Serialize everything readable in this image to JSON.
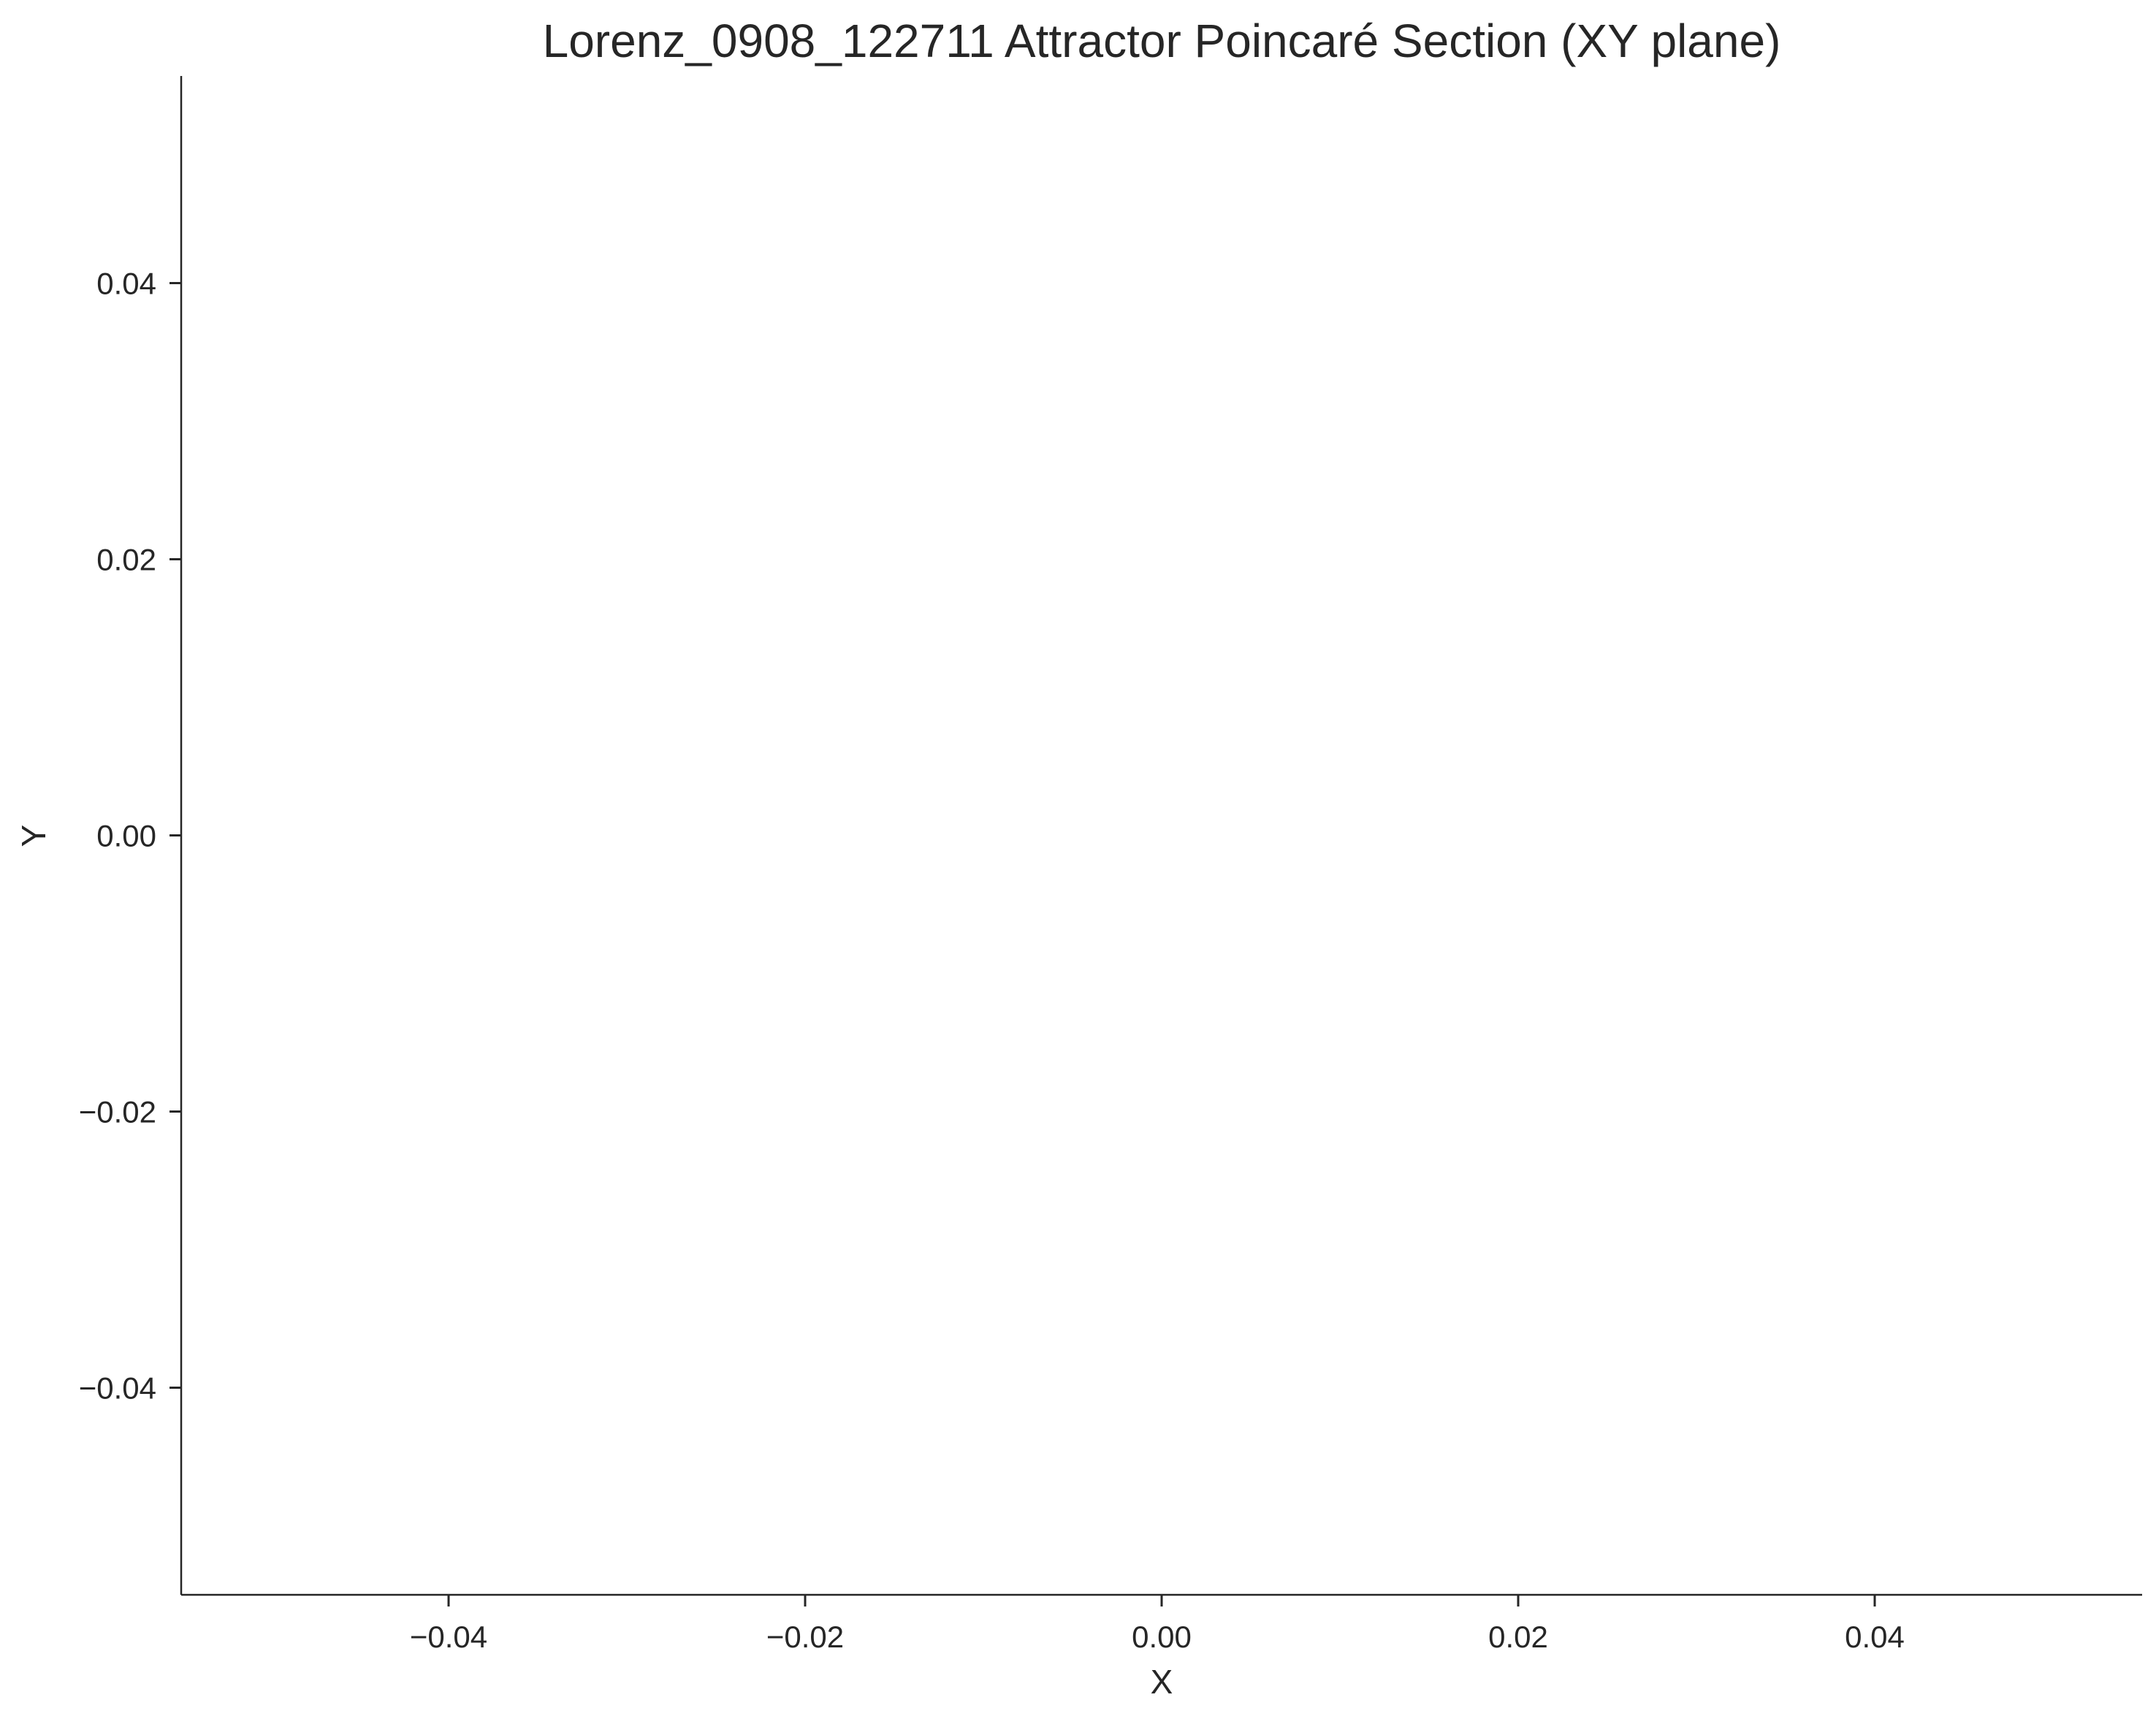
{
  "chart_data": {
    "type": "scatter",
    "title": "Lorenz_0908_122711 Attractor Poincaré Section (XY plane)",
    "xlabel": "X",
    "ylabel": "Y",
    "xlim": [
      -0.055,
      0.055
    ],
    "ylim": [
      -0.055,
      0.055
    ],
    "x_ticks": [
      -0.04,
      -0.02,
      0.0,
      0.02,
      0.04
    ],
    "x_tick_labels": [
      "−0.04",
      "−0.02",
      "0.00",
      "0.02",
      "0.04"
    ],
    "y_ticks": [
      0.04,
      0.02,
      0.0,
      -0.02,
      -0.04
    ],
    "y_tick_labels": [
      "0.04",
      "0.02",
      "0.00",
      "−0.02",
      "−0.04"
    ],
    "points": [],
    "grid": false,
    "spines": [
      "left",
      "bottom"
    ],
    "colors": {
      "text": "#262626",
      "axis": "#262626",
      "background": "#ffffff"
    }
  }
}
